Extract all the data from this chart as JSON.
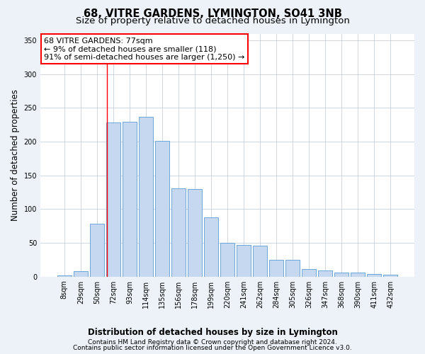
{
  "title": "68, VITRE GARDENS, LYMINGTON, SO41 3NB",
  "subtitle": "Size of property relative to detached houses in Lymington",
  "xlabel": "Distribution of detached houses by size in Lymington",
  "ylabel": "Number of detached properties",
  "categories": [
    "8sqm",
    "29sqm",
    "50sqm",
    "72sqm",
    "93sqm",
    "114sqm",
    "135sqm",
    "156sqm",
    "178sqm",
    "199sqm",
    "220sqm",
    "241sqm",
    "262sqm",
    "284sqm",
    "305sqm",
    "326sqm",
    "347sqm",
    "368sqm",
    "390sqm",
    "411sqm",
    "432sqm"
  ],
  "bar_values": [
    2,
    8,
    78,
    228,
    229,
    237,
    201,
    131,
    130,
    88,
    50,
    47,
    46,
    25,
    25,
    11,
    9,
    6,
    6,
    4,
    3
  ],
  "bar_color": "#c5d8f0",
  "bar_edge_color": "#5b9bd5",
  "vline_color": "red",
  "annotation_line1": "68 VITRE GARDENS: 77sqm",
  "annotation_line2": "← 9% of detached houses are smaller (118)",
  "annotation_line3": "91% of semi-detached houses are larger (1,250) →",
  "annotation_box_color": "white",
  "annotation_box_edge_color": "red",
  "ylim": [
    0,
    360
  ],
  "yticks": [
    0,
    50,
    100,
    150,
    200,
    250,
    300,
    350
  ],
  "bg_color": "#edf2f9",
  "plot_bg_color": "white",
  "grid_color": "#c8d0e0",
  "footer1": "Contains HM Land Registry data © Crown copyright and database right 2024.",
  "footer2": "Contains public sector information licensed under the Open Government Licence v3.0.",
  "title_fontsize": 10.5,
  "subtitle_fontsize": 9.5,
  "axis_label_fontsize": 8.5,
  "tick_fontsize": 7,
  "annotation_fontsize": 8,
  "footer_fontsize": 6.5
}
